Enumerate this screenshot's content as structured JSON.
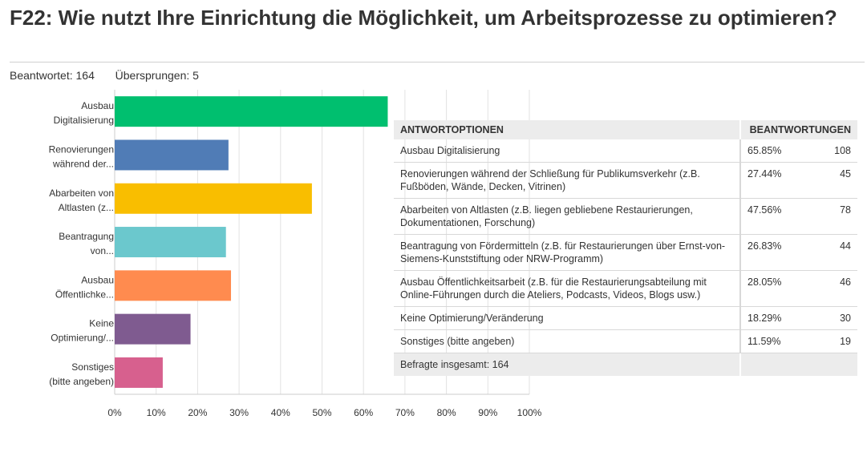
{
  "question": {
    "title": "F22: Wie nutzt Ihre Einrichtung die Möglichkeit, um Arbeitsprozesse zu optimieren?",
    "answered_label": "Beantwortet:",
    "answered_value": "164",
    "skipped_label": "Übersprungen:",
    "skipped_value": "5"
  },
  "chart_data": {
    "type": "bar",
    "orientation": "horizontal",
    "categories": [
      [
        "Ausbau",
        "Digitalisierung"
      ],
      [
        "Renovierungen",
        "während der..."
      ],
      [
        "Abarbeiten von",
        "Altlasten (z..."
      ],
      [
        "Beantragung",
        "von..."
      ],
      [
        "Ausbau",
        "Öffentlichke..."
      ],
      [
        "Keine",
        "Optimierung/..."
      ],
      [
        "Sonstiges",
        "(bitte angeben)"
      ]
    ],
    "values": [
      65.85,
      27.44,
      47.56,
      26.83,
      28.05,
      18.29,
      11.59
    ],
    "colors": [
      "#00bf6f",
      "#507cb6",
      "#f9be00",
      "#6bc8cd",
      "#ff8b4f",
      "#7f5b90",
      "#d7608e"
    ],
    "xlim": [
      0,
      100
    ],
    "xticks": [
      0,
      10,
      20,
      30,
      40,
      50,
      60,
      70,
      80,
      90,
      100
    ],
    "xtick_labels": [
      "0%",
      "10%",
      "20%",
      "30%",
      "40%",
      "50%",
      "60%",
      "70%",
      "80%",
      "90%",
      "100%"
    ],
    "grid": true
  },
  "table": {
    "headers": {
      "option": "ANTWORTOPTIONEN",
      "responses": "BEANTWORTUNGEN"
    },
    "rows": [
      {
        "label": "Ausbau Digitalisierung",
        "pct": "65.85%",
        "count": "108"
      },
      {
        "label": "Renovierungen während der Schließung für Publikumsverkehr (z.B. Fußböden, Wände, Decken, Vitrinen)",
        "pct": "27.44%",
        "count": "45"
      },
      {
        "label": "Abarbeiten von Altlasten (z.B. liegen gebliebene Restaurierungen, Dokumentationen, Forschung)",
        "pct": "47.56%",
        "count": "78"
      },
      {
        "label": "Beantragung von Fördermitteln (z.B. für Restaurierungen über Ernst-von-Siemens-Kunststiftung oder NRW-Programm)",
        "pct": "26.83%",
        "count": "44"
      },
      {
        "label": "Ausbau Öffentlichkeitsarbeit (z.B. für die Restaurierungsabteilung mit Online-Führungen durch die Ateliers, Podcasts, Videos, Blogs usw.)",
        "pct": "28.05%",
        "count": "46"
      },
      {
        "label": "Keine Optimierung/Veränderung",
        "pct": "18.29%",
        "count": "30"
      },
      {
        "label": "Sonstiges (bitte angeben)",
        "pct": "11.59%",
        "count": "19"
      }
    ],
    "total_label": "Befragte insgesamt: 164"
  }
}
